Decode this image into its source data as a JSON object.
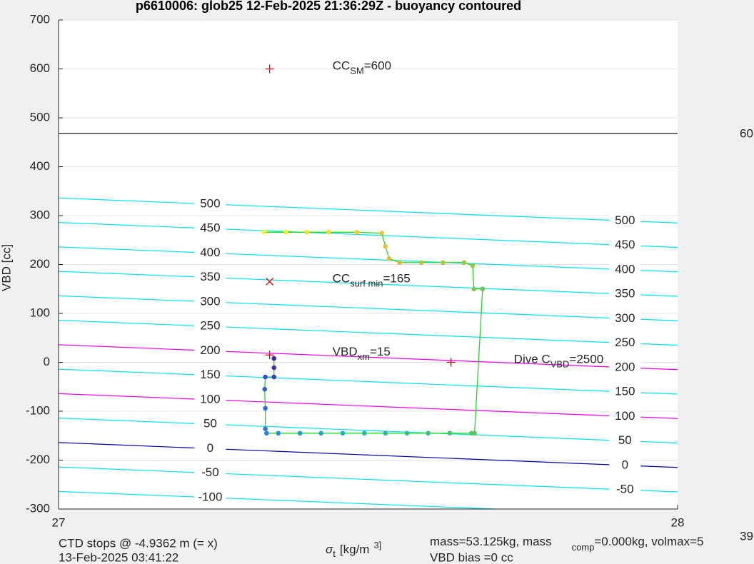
{
  "chart_data": {
    "type": "scatter",
    "title": "p6610006: glob25 12-Feb-2025 21:36:29Z - buoyancy contoured",
    "ylabel": "VBD [cc]",
    "xlabel": {
      "symbol": "σ",
      "sub": "t",
      "unit": "[kg/m",
      "sup": "3]"
    },
    "xlim": [
      27,
      28
    ],
    "xticks": [
      27,
      28
    ],
    "ylim": [
      -300,
      700
    ],
    "yticks": [
      -300,
      -200,
      -100,
      0,
      100,
      200,
      300,
      400,
      500,
      600,
      700
    ],
    "grid": true,
    "contours": [
      {
        "level": 500,
        "color": "#00e5ee",
        "y": [
          336,
          285
        ]
      },
      {
        "level": 450,
        "color": "#00e5ee",
        "y": [
          286,
          235
        ]
      },
      {
        "level": 400,
        "color": "#00e5ee",
        "y": [
          236,
          185
        ]
      },
      {
        "level": 350,
        "color": "#00e5ee",
        "y": [
          186,
          135
        ]
      },
      {
        "level": 300,
        "color": "#00e5ee",
        "y": [
          136,
          85
        ]
      },
      {
        "level": 250,
        "color": "#00e5ee",
        "y": [
          86,
          35
        ]
      },
      {
        "level": 200,
        "color": "#ee00ee",
        "y": [
          36,
          -15
        ]
      },
      {
        "level": 150,
        "color": "#00e5ee",
        "y": [
          -14,
          -65
        ]
      },
      {
        "level": 100,
        "color": "#ee00ee",
        "y": [
          -64,
          -115
        ]
      },
      {
        "level": 50,
        "color": "#00e5ee",
        "y": [
          -114,
          -165
        ]
      },
      {
        "level": 0,
        "color": "#0000aa",
        "y": [
          -164,
          -215
        ]
      },
      {
        "level": -50,
        "color": "#00e5ee",
        "y": [
          -214,
          -265
        ]
      },
      {
        "level": -100,
        "color": "#00e5ee",
        "y": [
          -264,
          -315
        ]
      }
    ],
    "hline": {
      "y": 468,
      "color": "#000000",
      "label": "60"
    },
    "points": {
      "x": [
        27.348,
        27.348,
        27.348,
        27.334,
        27.333,
        27.334,
        27.334,
        27.336,
        27.355,
        27.39,
        27.424,
        27.459,
        27.494,
        27.528,
        27.563,
        27.597,
        27.632,
        27.667,
        27.672,
        27.685,
        27.671,
        27.669,
        27.655,
        27.621,
        27.586,
        27.551,
        27.534,
        27.528,
        27.522,
        27.482,
        27.436,
        27.401,
        27.367,
        27.332
      ],
      "y": [
        8,
        -11,
        -30,
        -30,
        -55,
        -94,
        -136,
        -145,
        -145,
        -145,
        -145,
        -145,
        -145,
        -145,
        -145,
        -145,
        -145,
        -145,
        -145,
        150,
        150,
        198,
        204,
        204,
        204,
        204,
        212,
        237,
        264,
        266,
        266,
        266,
        266,
        266
      ],
      "line_color": "#22dd22",
      "colormap": [
        "#3e26a8",
        "#2f6ef0",
        "#16b4c8",
        "#4ac16d",
        "#a5c63a",
        "#f7b932",
        "#f9fb0e"
      ]
    },
    "markers": [
      {
        "x": 27.341,
        "y": 600,
        "symbol": "+",
        "color": "#e00000",
        "label": [
          "CC",
          "SM",
          "=600"
        ]
      },
      {
        "x": 27.341,
        "y": 165,
        "symbol": "x",
        "color": "#e00000",
        "label": [
          "CC",
          "surf min",
          "=165"
        ]
      },
      {
        "x": 27.341,
        "y": 15,
        "symbol": "+",
        "color": "#e00000",
        "label": [
          "VBD",
          "xm",
          "=15"
        ]
      },
      {
        "x": 27.634,
        "y": 0,
        "symbol": "+",
        "color": "#e00000",
        "label": [
          "Dive C",
          "VBD",
          "=2500"
        ]
      }
    ],
    "footer": {
      "ctd": "CTD stops @ -4.9362 m (= x)",
      "date": "13-Feb-2025 03:41:22",
      "mass": "mass=53.125kg, mass",
      "mass_sub": "comp",
      "mass_rest": "=0.000kg, volmax=5",
      "bias": "VBD bias =0 cc",
      "corner": "39"
    }
  }
}
